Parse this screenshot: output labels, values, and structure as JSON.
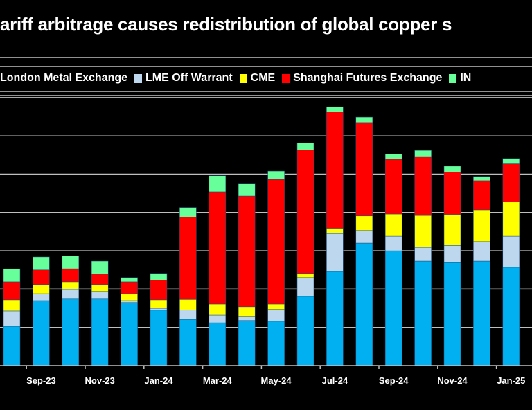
{
  "chart_data": {
    "type": "bar",
    "stacked": true,
    "title": "ariff arbitrage causes redistribution of global copper s",
    "xlabel": "",
    "ylabel": "",
    "ylim": [
      0,
      700
    ],
    "grid": true,
    "legend_position": "top",
    "categories": [
      "Aug-23",
      "Sep-23",
      "Oct-23",
      "Nov-23",
      "Dec-23",
      "Jan-24",
      "Feb-24",
      "Mar-24",
      "Apr-24",
      "May-24",
      "Jun-24",
      "Jul-24",
      "Aug-24",
      "Sep-24",
      "Oct-24",
      "Nov-24",
      "Dec-24",
      "Jan-25"
    ],
    "tick_labels": [
      "Sep-23",
      "Nov-23",
      "Jan-24",
      "Mar-24",
      "May-24",
      "Jul-24",
      "Sep-24",
      "Nov-24",
      "Jan-25"
    ],
    "series": [
      {
        "name": "London Metal Exchange",
        "legend_text": "London Metal Exchange",
        "color": "#00b0f0",
        "values": [
          103,
          170,
          174,
          174,
          165,
          145,
          121,
          112,
          118,
          116,
          181,
          246,
          320,
          300,
          273,
          269,
          273,
          257
        ]
      },
      {
        "name": "LME Off Warrant",
        "legend_text": "LME Off Warrant",
        "color": "#bdd7ee",
        "values": [
          40,
          18,
          25,
          20,
          5,
          5,
          25,
          20,
          11,
          31,
          49,
          99,
          33,
          38,
          36,
          45,
          51,
          81
        ]
      },
      {
        "name": "CME",
        "legend_text": "CME",
        "color": "#ffff00",
        "values": [
          29,
          24,
          20,
          18,
          18,
          22,
          27,
          29,
          25,
          14,
          11,
          14,
          38,
          58,
          83,
          81,
          83,
          90
        ]
      },
      {
        "name": "Shanghai Futures Exchange",
        "legend_text": "Shanghai Futures Exchange",
        "color": "#ff0000",
        "values": [
          47,
          38,
          34,
          27,
          31,
          51,
          215,
          293,
          289,
          325,
          322,
          304,
          244,
          143,
          154,
          110,
          76,
          99
        ]
      },
      {
        "name": "INE",
        "legend_text": "IN",
        "color": "#66ff99",
        "values": [
          34,
          34,
          34,
          34,
          11,
          18,
          25,
          42,
          33,
          22,
          18,
          13,
          14,
          13,
          16,
          16,
          11,
          14
        ]
      }
    ]
  }
}
